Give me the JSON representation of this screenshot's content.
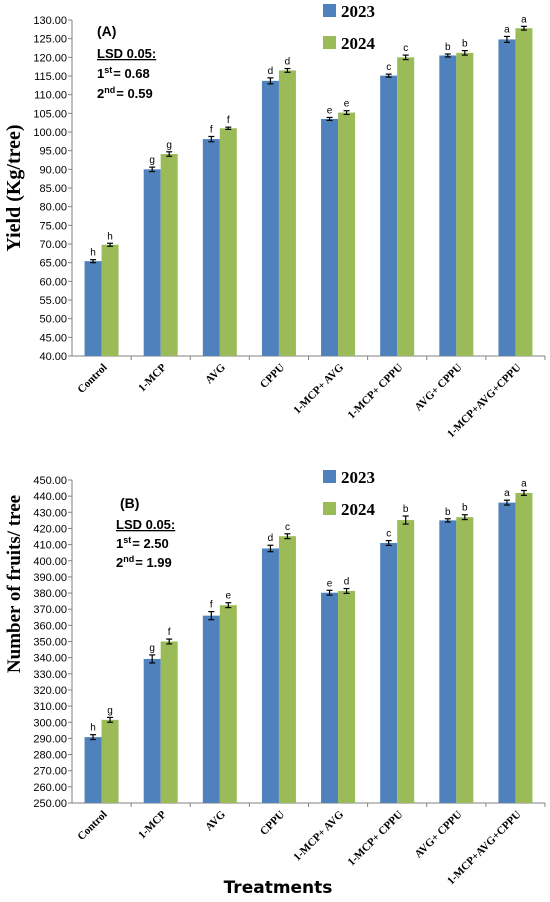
{
  "chart_data": [
    {
      "type": "bar",
      "panel_label": "(A)",
      "ylabel": "Yield  (Kg/tree)",
      "xlabel": "",
      "ylim": [
        40,
        130
      ],
      "ytick_step": 5,
      "ytick_labels": [
        "40.00",
        "45.00",
        "50.00",
        "55.00",
        "60.00",
        "65.00",
        "70.00",
        "75.00",
        "80.00",
        "85.00",
        "90.00",
        "95.00",
        "100.00",
        "105.00",
        "110.00",
        "115.00",
        "120.00",
        "125.00",
        "130.00"
      ],
      "categories": [
        "Control",
        "1-MCP",
        "AVG",
        "CPPU",
        "1-MCP+ AVG",
        "1-MCP+ CPPU",
        "AVG+ CPPU",
        "1-MCP+AVG+CPPU"
      ],
      "series": [
        {
          "name": "2023",
          "color": "#4F81BD",
          "values": [
            65.4,
            90.0,
            98.1,
            113.7,
            103.5,
            115.1,
            120.5,
            124.8
          ],
          "errors": [
            0.4,
            0.6,
            0.7,
            0.8,
            0.4,
            0.4,
            0.4,
            0.8
          ],
          "letters": [
            "h",
            "g",
            "f",
            "d",
            "e",
            "c",
            "b",
            "a"
          ]
        },
        {
          "name": "2024",
          "color": "#9BBB59",
          "values": [
            69.8,
            94.1,
            101.0,
            116.5,
            105.2,
            120.0,
            121.2,
            127.8
          ],
          "errors": [
            0.4,
            0.6,
            0.3,
            0.5,
            0.5,
            0.6,
            0.6,
            0.5
          ],
          "letters": [
            "h",
            "g",
            "f",
            "d",
            "e",
            "c",
            "b",
            "a"
          ]
        }
      ],
      "legend": [
        "2023",
        "2024"
      ],
      "lsd": {
        "title": "LSD 0.05:",
        "first_ord": "1",
        "first_sup": "st",
        "first_val": "= 0.68",
        "second_ord": "2",
        "second_sup": "nd",
        "second_val": "= 0.59"
      }
    },
    {
      "type": "bar",
      "panel_label": "(B)",
      "ylabel": "Number of fruits/ tree",
      "xlabel": "Treatments",
      "ylim": [
        250,
        450
      ],
      "ytick_step": 10,
      "ytick_labels": [
        "250.00",
        "260.00",
        "270.00",
        "280.00",
        "290.00",
        "300.00",
        "310.00",
        "320.00",
        "330.00",
        "340.00",
        "350.00",
        "360.00",
        "370.00",
        "380.00",
        "390.00",
        "400.00",
        "410.00",
        "420.00",
        "430.00",
        "440.00",
        "450.00"
      ],
      "categories": [
        "Control",
        "1-MCP",
        "AVG",
        "CPPU",
        "1-MCP+ AVG",
        "1-MCP+ CPPU",
        "AVG+ CPPU",
        "1-MCP+AVG+CPPU"
      ],
      "series": [
        {
          "name": "2023",
          "color": "#4F81BD",
          "values": [
            290.8,
            339.2,
            366.0,
            407.6,
            380.2,
            411.0,
            425.0,
            436.0
          ],
          "errors": [
            1.5,
            2.5,
            2.5,
            2.0,
            1.5,
            1.5,
            1.0,
            1.5
          ],
          "letters": [
            "h",
            "g",
            "f",
            "d",
            "e",
            "c",
            "b",
            "a"
          ]
        },
        {
          "name": "2024",
          "color": "#9BBB59",
          "values": [
            301.5,
            350.0,
            372.5,
            415.2,
            381.3,
            425.2,
            427.0,
            442.0
          ],
          "errors": [
            1.5,
            1.5,
            1.5,
            1.5,
            1.5,
            2.5,
            1.5,
            1.5
          ],
          "letters": [
            "g",
            "f",
            "e",
            "c",
            "d",
            "b",
            "b",
            "a"
          ]
        }
      ],
      "legend": [
        "2023",
        "2024"
      ],
      "lsd": {
        "title": "LSD 0.05:",
        "first_ord": "1",
        "first_sup": "st",
        "first_val": "= 2.50",
        "second_ord": "2",
        "second_sup": "nd",
        "second_val": "= 1.99"
      }
    }
  ]
}
